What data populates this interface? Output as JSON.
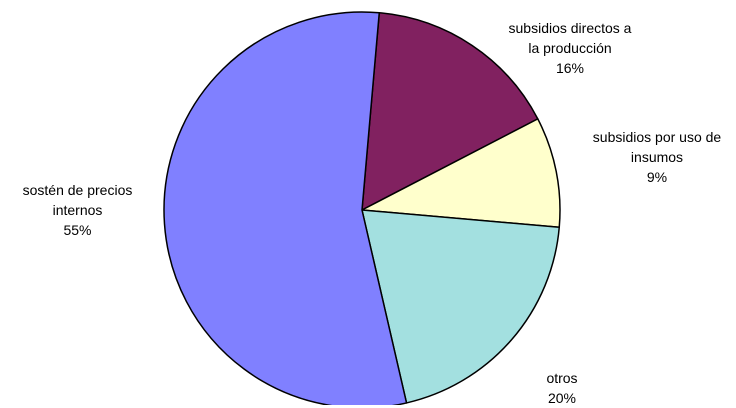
{
  "chart_data": {
    "type": "pie",
    "title": "",
    "start_angle_deg": 5,
    "direction": "clockwise",
    "slices": [
      {
        "label_lines": [
          "subsidios directos a",
          "la producción"
        ],
        "percent_label": "16%",
        "value": 16,
        "color": "#812160"
      },
      {
        "label_lines": [
          "subsidios por uso de",
          "insumos"
        ],
        "percent_label": "9%",
        "value": 9,
        "color": "#FFFFCC"
      },
      {
        "label_lines": [
          "otros"
        ],
        "percent_label": "20%",
        "value": 20,
        "color": "#A3E0E0"
      },
      {
        "label_lines": [
          "sostén de precios",
          "internos"
        ],
        "percent_label": "55%",
        "value": 55,
        "color": "#8080FF"
      }
    ],
    "edge_color": "#000000"
  }
}
